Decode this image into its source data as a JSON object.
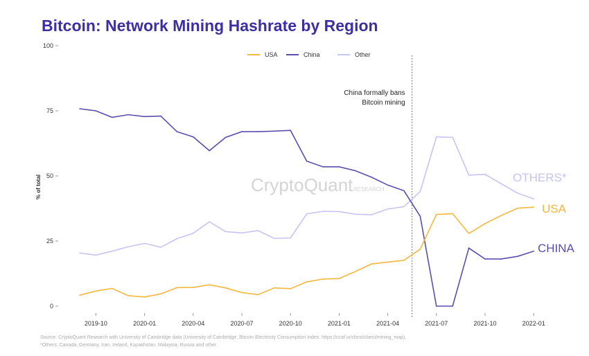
{
  "chart_data": {
    "type": "line",
    "title": "Bitcoin: Network Mining Hashrate by Region",
    "xlabel": "",
    "ylabel": "% of total",
    "ylim": [
      0,
      100
    ],
    "yticks": [
      0,
      25,
      50,
      75,
      100
    ],
    "xtick_labels": [
      "2019-10",
      "2020-01",
      "2020-04",
      "2020-07",
      "2020-10",
      "2021-01",
      "2021-04",
      "2021-07",
      "2021-10",
      "2022-01"
    ],
    "xtick_index": [
      1,
      4,
      7,
      10,
      13,
      16,
      19,
      22,
      25,
      28
    ],
    "x_start": "2019-09",
    "x_end": "2022-01",
    "legend": {
      "placement": "top-center"
    },
    "series": [
      {
        "name": "USA",
        "color": "#f5b73d",
        "end_label": "USA",
        "values": [
          4.2,
          5.8,
          6.8,
          4,
          3.5,
          4.7,
          7.1,
          7.2,
          8.2,
          7,
          5.2,
          4.4,
          7,
          6.7,
          9.3,
          10.4,
          10.6,
          13.3,
          16.2,
          16.9,
          17.6,
          21.9,
          35.2,
          35.5,
          27.9,
          31.7,
          34.8,
          37.6,
          38
        ]
      },
      {
        "name": "China",
        "color": "#5a4db0",
        "end_label": "CHINA",
        "values": [
          75.8,
          75,
          72.5,
          73.5,
          72.8,
          73,
          67,
          65,
          59.7,
          64.8,
          67,
          67,
          67.2,
          67.5,
          55.7,
          53.5,
          53.5,
          52,
          49.5,
          46.5,
          44.3,
          34.5,
          0,
          0,
          22.3,
          18.1,
          18.1,
          19.1,
          21.1
        ]
      },
      {
        "name": "Other",
        "color": "#c6c3f5",
        "end_label": "OTHERS*",
        "values": [
          20.4,
          19.6,
          21.1,
          22.8,
          24.1,
          22.6,
          25.9,
          28,
          32.4,
          28.6,
          28.1,
          29,
          26,
          26.2,
          35.4,
          36.4,
          36.3,
          35.3,
          35.1,
          37.3,
          38.2,
          44,
          65,
          64.8,
          50.3,
          50.6,
          47,
          43.4,
          41.2
        ]
      }
    ],
    "annotation": {
      "text_lines": [
        "China formally bans",
        "Bitcoin mining"
      ],
      "at_index": 20.5
    },
    "watermark": {
      "main": "CryptoQuant",
      "sub": "RESEARCH"
    }
  },
  "footer": {
    "source": "Source: CryptoQuant Research with University of Cambridge data (University of Cambridge, Bitcoin Electricity Consumption Index, https://ccaf.io/cbnsi/cbeci/mining_map).",
    "note": "*Others: Canada, Germany, Iran, Ireland, Kazakhstan, Malaysia, Russia and other."
  }
}
